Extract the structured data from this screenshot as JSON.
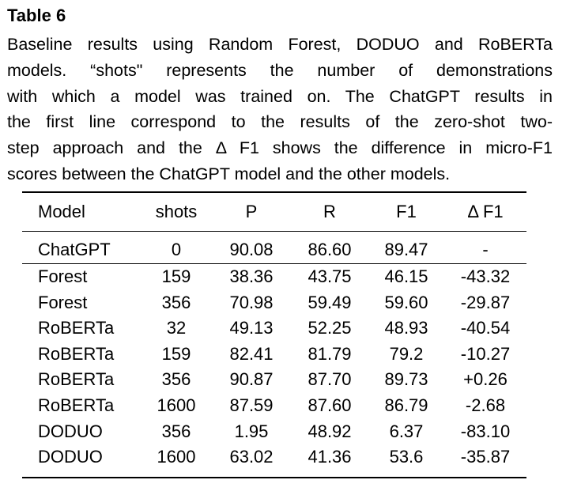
{
  "table": {
    "label": "Table 6",
    "caption_lines": [
      "Baseline results using Random Forest, DODUO and RoBERTa",
      "models.  “shots\" represents the number of demonstrations",
      "with which a model was trained on. The ChatGPT results in",
      "the first line correspond to the results of the zero-shot two-",
      "step approach and the Δ F1 shows the difference in micro-F1",
      "scores between the ChatGPT model and the other models."
    ],
    "headers": [
      "Model",
      "shots",
      "P",
      "R",
      "F1",
      "Δ F1"
    ],
    "rows": [
      [
        "ChatGPT",
        "0",
        "90.08",
        "86.60",
        "89.47",
        "-"
      ],
      [
        "Forest",
        "159",
        "38.36",
        "43.75",
        "46.15",
        "-43.32"
      ],
      [
        "Forest",
        "356",
        "70.98",
        "59.49",
        "59.60",
        "-29.87"
      ],
      [
        "RoBERTa",
        "32",
        "49.13",
        "52.25",
        "48.93",
        "-40.54"
      ],
      [
        "RoBERTa",
        "159",
        "82.41",
        "81.79",
        "79.2",
        "-10.27"
      ],
      [
        "RoBERTa",
        "356",
        "90.87",
        "87.70",
        "89.73",
        "+0.26"
      ],
      [
        "RoBERTa",
        "1600",
        "87.59",
        "87.60",
        "86.79",
        "-2.68"
      ],
      [
        "DODUO",
        "356",
        "1.95",
        "48.92",
        "6.37",
        "-83.10"
      ],
      [
        "DODUO",
        "1600",
        "63.02",
        "41.36",
        "53.6",
        "-35.87"
      ]
    ]
  }
}
